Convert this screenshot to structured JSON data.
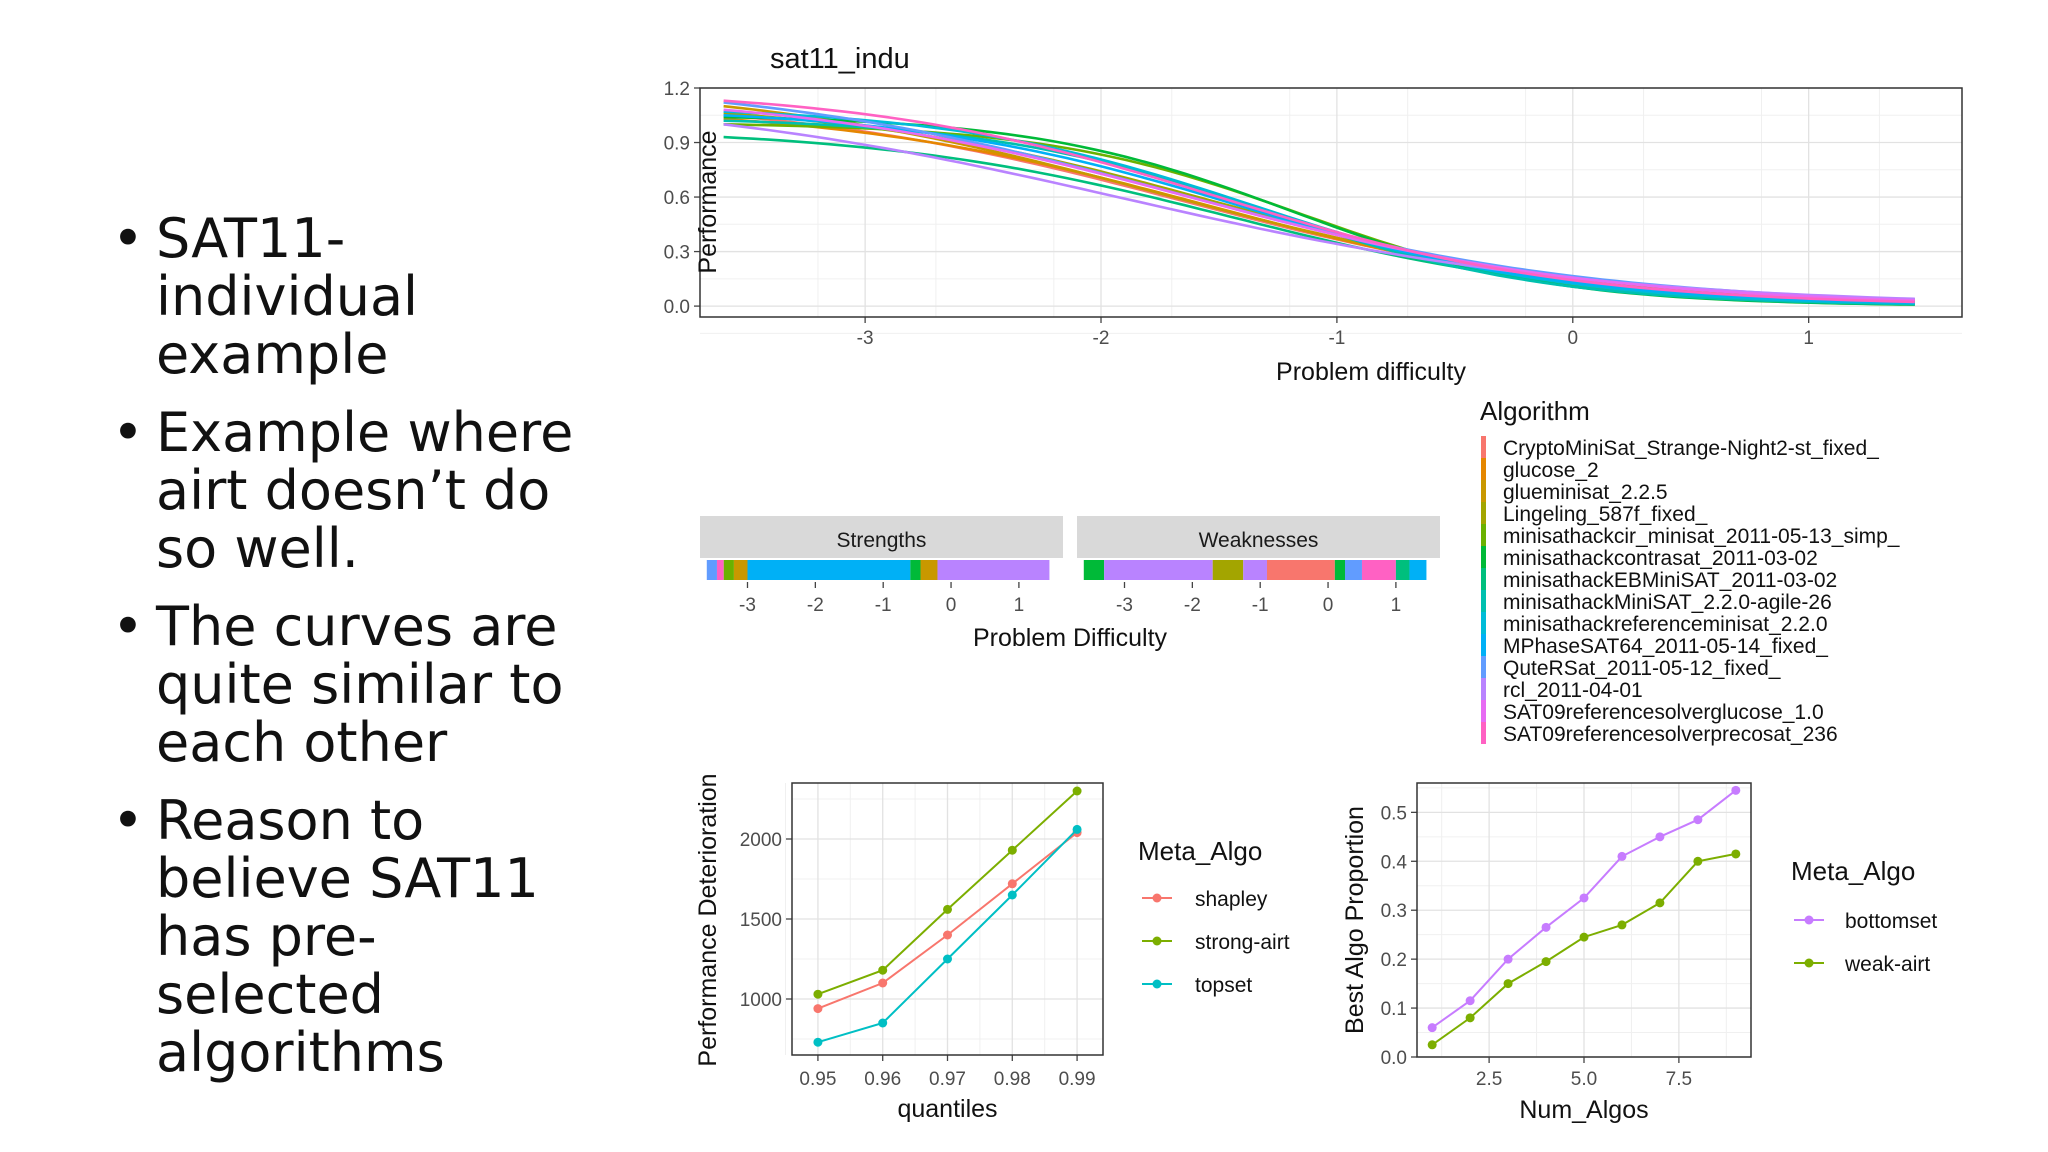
{
  "bullets": [
    "SAT11-individual example",
    "Example where airt doesn’t do so well.",
    "The curves are quite similar to each other",
    "Reason to believe SAT11 has pre-selected algorithms"
  ],
  "chart_data": [
    {
      "type": "line",
      "title": "sat11_indu",
      "xlabel": "Problem difficulty",
      "ylabel": "Performance",
      "xlim": [
        -3.7,
        1.65
      ],
      "ylim": [
        -0.06,
        1.2
      ],
      "xticks": [
        "-3",
        "-2",
        "-1",
        "0",
        "1"
      ],
      "yticks": [
        "0.0",
        "0.3",
        "0.6",
        "0.9",
        "1.2"
      ],
      "legend_title": "Algorithm",
      "legend_position": "bottom-right",
      "series": [
        {
          "name": "CryptoMiniSat_Strange-Night2-st_fixed_",
          "color": "#F8766D",
          "a": 1.05,
          "c": -1.65,
          "s": 0.85
        },
        {
          "name": "glucose_2",
          "color": "#E58700",
          "a": 1.03,
          "c": -1.55,
          "s": 0.8
        },
        {
          "name": "glueminisat_2.2.5",
          "color": "#C99800",
          "a": 1.1,
          "c": -1.75,
          "s": 0.9
        },
        {
          "name": "Lingeling_587f_fixed_",
          "color": "#A3A500",
          "a": 1.06,
          "c": -1.5,
          "s": 0.8
        },
        {
          "name": "minisathackcir_minisat_2011-05-13_simp_",
          "color": "#6BB100",
          "a": 1.0,
          "c": -1.15,
          "s": 0.55
        },
        {
          "name": "minisathackcontrasat_2011-03-02",
          "color": "#00BA38",
          "a": 1.04,
          "c": -1.2,
          "s": 0.55
        },
        {
          "name": "minisathackEBMiniSAT_2011-03-02",
          "color": "#00BF7D",
          "a": 0.93,
          "c": -1.45,
          "s": 0.75
        },
        {
          "name": "minisathackMiniSAT_2.2.0-agile-26",
          "color": "#00C0AF",
          "a": 1.02,
          "c": -1.3,
          "s": 0.6
        },
        {
          "name": "minisathackreferenceminisat_2.2.0",
          "color": "#00BCD8",
          "a": 1.07,
          "c": -1.35,
          "s": 0.65
        },
        {
          "name": "MPhaseSAT64_2011-05-14_fixed_",
          "color": "#00B0F6",
          "a": 1.05,
          "c": -1.4,
          "s": 0.7
        },
        {
          "name": "QuteRSat_2011-05-12_fixed_",
          "color": "#619CFF",
          "a": 1.12,
          "c": -1.7,
          "s": 0.9
        },
        {
          "name": "rcl_2011-04-01",
          "color": "#B983FF",
          "a": 1.0,
          "c": -1.9,
          "s": 1.0
        },
        {
          "name": "SAT09referencesolverglucose_1.0",
          "color": "#E76BF3",
          "a": 1.08,
          "c": -1.6,
          "s": 0.85
        },
        {
          "name": "SAT09referencesolverprecosat_236",
          "color": "#FF61C3",
          "a": 1.13,
          "c": -1.5,
          "s": 0.75
        }
      ]
    },
    {
      "type": "bar",
      "title": "",
      "xlabel": "Problem Difficulty",
      "panels": [
        {
          "label": "Strengths",
          "xlim": [
            -3.7,
            1.65
          ],
          "xticks": [
            "-3",
            "-2",
            "-1",
            "0",
            "1"
          ],
          "segments": [
            {
              "from": -3.6,
              "to": -3.45,
              "color": "#619CFF"
            },
            {
              "from": -3.45,
              "to": -3.35,
              "color": "#FF61C3"
            },
            {
              "from": -3.35,
              "to": -3.2,
              "color": "#6BB100"
            },
            {
              "from": -3.2,
              "to": -3.0,
              "color": "#C99800"
            },
            {
              "from": -3.0,
              "to": -0.6,
              "color": "#00B0F6"
            },
            {
              "from": -0.6,
              "to": -0.45,
              "color": "#00BA38"
            },
            {
              "from": -0.45,
              "to": -0.2,
              "color": "#C99800"
            },
            {
              "from": -0.2,
              "to": 1.45,
              "color": "#B983FF"
            }
          ]
        },
        {
          "label": "Weaknesses",
          "xlim": [
            -3.7,
            1.65
          ],
          "xticks": [
            "-3",
            "-2",
            "-1",
            "0",
            "1"
          ],
          "segments": [
            {
              "from": -3.6,
              "to": -3.3,
              "color": "#00BA38"
            },
            {
              "from": -3.3,
              "to": -1.7,
              "color": "#B983FF"
            },
            {
              "from": -1.7,
              "to": -1.25,
              "color": "#A3A500"
            },
            {
              "from": -1.25,
              "to": -0.9,
              "color": "#B983FF"
            },
            {
              "from": -0.9,
              "to": 0.1,
              "color": "#F8766D"
            },
            {
              "from": 0.1,
              "to": 0.25,
              "color": "#00BA38"
            },
            {
              "from": 0.25,
              "to": 0.5,
              "color": "#619CFF"
            },
            {
              "from": 0.5,
              "to": 1.0,
              "color": "#FF61C3"
            },
            {
              "from": 1.0,
              "to": 1.2,
              "color": "#00BF7D"
            },
            {
              "from": 1.2,
              "to": 1.45,
              "color": "#00B0F6"
            }
          ]
        }
      ]
    },
    {
      "type": "line",
      "title": "",
      "xlabel": "quantiles",
      "ylabel": "Performance Deterioration",
      "x": [
        0.95,
        0.96,
        0.97,
        0.98,
        0.99
      ],
      "xticks": [
        "0.95",
        "0.96",
        "0.97",
        "0.98",
        "0.99"
      ],
      "xlim": [
        0.946,
        0.994
      ],
      "yticks": [
        "1000",
        "1500",
        "2000"
      ],
      "ylim": [
        650,
        2350
      ],
      "legend_title": "Meta_Algo",
      "legend_position": "right",
      "series": [
        {
          "name": "shapley",
          "color": "#F8766D",
          "values": [
            940,
            1100,
            1400,
            1720,
            2040
          ]
        },
        {
          "name": "strong-airt",
          "color": "#7CAE00",
          "values": [
            1030,
            1180,
            1560,
            1930,
            2300
          ]
        },
        {
          "name": "topset",
          "color": "#00BFC4",
          "values": [
            730,
            850,
            1250,
            1650,
            2060
          ]
        }
      ]
    },
    {
      "type": "line",
      "title": "",
      "xlabel": "Num_Algos",
      "ylabel": "Best Algo Proportion",
      "x": [
        1,
        2,
        3,
        4,
        5,
        6,
        7,
        8,
        9
      ],
      "xticks": [
        "2.5",
        "5.0",
        "7.5"
      ],
      "xtick_values": [
        2.5,
        5.0,
        7.5
      ],
      "xlim": [
        0.6,
        9.4
      ],
      "yticks": [
        "0.0",
        "0.1",
        "0.2",
        "0.3",
        "0.4",
        "0.5"
      ],
      "ylim": [
        0,
        0.56
      ],
      "legend_title": "Meta_Algo",
      "legend_position": "right",
      "series": [
        {
          "name": "bottomset",
          "color": "#C77CFF",
          "values": [
            0.06,
            0.115,
            0.2,
            0.265,
            0.325,
            0.41,
            0.45,
            0.485,
            0.545
          ]
        },
        {
          "name": "weak-airt",
          "color": "#7CAE00",
          "values": [
            0.025,
            0.08,
            0.15,
            0.195,
            0.245,
            0.27,
            0.315,
            0.4,
            0.415
          ]
        }
      ]
    }
  ]
}
